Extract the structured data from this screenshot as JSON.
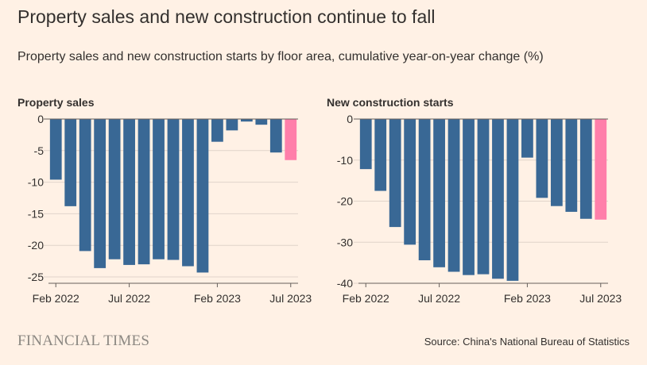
{
  "header": {
    "title": "Property sales and new construction continue to fall",
    "subtitle": "Property sales and new construction starts by floor area, cumulative year-on-year change (%)"
  },
  "footer": {
    "logo_text": "FINANCIAL TIMES",
    "source": "Source: China's National Bureau of Statistics"
  },
  "colors": {
    "bar": "#396895",
    "highlight": "#FF7FAA",
    "background": "#FFF1E5",
    "grid": "#E0D4CA",
    "zero_line": "#66605C"
  },
  "chart_data": [
    {
      "type": "bar",
      "title": "Property sales",
      "categories": [
        "Feb 2022",
        "Mar 2022",
        "Apr 2022",
        "May 2022",
        "Jun 2022",
        "Jul 2022",
        "Aug 2022",
        "Sep 2022",
        "Oct 2022",
        "Nov 2022",
        "Dec 2022",
        "Feb 2023",
        "Mar 2023",
        "Apr 2023",
        "May 2023",
        "Jun 2023",
        "Jul 2023"
      ],
      "values": [
        -9.6,
        -13.8,
        -20.9,
        -23.6,
        -22.2,
        -23.1,
        -23.0,
        -22.2,
        -22.3,
        -23.3,
        -24.3,
        -3.6,
        -1.8,
        -0.4,
        -0.9,
        -5.3,
        -6.5
      ],
      "highlight_index": 16,
      "ylim": [
        -26,
        0
      ],
      "yticks": [
        0,
        -5,
        -10,
        -15,
        -20,
        -25
      ],
      "ytick_labels": [
        "0",
        "-5",
        "-10",
        "-15",
        "-20",
        "-25"
      ],
      "xtick_labels": [
        {
          "index": 0,
          "label": "Feb 2022"
        },
        {
          "index": 5,
          "label": "Jul 2022"
        },
        {
          "index": 11,
          "label": "Feb 2023"
        },
        {
          "index": 16,
          "label": "Jul 2023"
        }
      ],
      "grid": true,
      "xlabel": "",
      "ylabel": ""
    },
    {
      "type": "bar",
      "title": "New construction starts",
      "categories": [
        "Feb 2022",
        "Mar 2022",
        "Apr 2022",
        "May 2022",
        "Jun 2022",
        "Jul 2022",
        "Aug 2022",
        "Sep 2022",
        "Oct 2022",
        "Nov 2022",
        "Dec 2022",
        "Feb 2023",
        "Mar 2023",
        "Apr 2023",
        "May 2023",
        "Jun 2023",
        "Jul 2023"
      ],
      "values": [
        -12.2,
        -17.5,
        -26.3,
        -30.6,
        -34.4,
        -36.1,
        -37.2,
        -38.0,
        -37.8,
        -38.9,
        -39.4,
        -9.4,
        -19.2,
        -21.2,
        -22.6,
        -24.3,
        -24.5
      ],
      "highlight_index": 16,
      "ylim": [
        -40,
        0
      ],
      "yticks": [
        0,
        -10,
        -20,
        -30,
        -40
      ],
      "ytick_labels": [
        "0",
        "-10",
        "-20",
        "-30",
        "-40"
      ],
      "xtick_labels": [
        {
          "index": 0,
          "label": "Feb 2022"
        },
        {
          "index": 5,
          "label": "Jul 2022"
        },
        {
          "index": 11,
          "label": "Feb 2023"
        },
        {
          "index": 16,
          "label": "Jul 2023"
        }
      ],
      "grid": true,
      "xlabel": "",
      "ylabel": ""
    }
  ]
}
